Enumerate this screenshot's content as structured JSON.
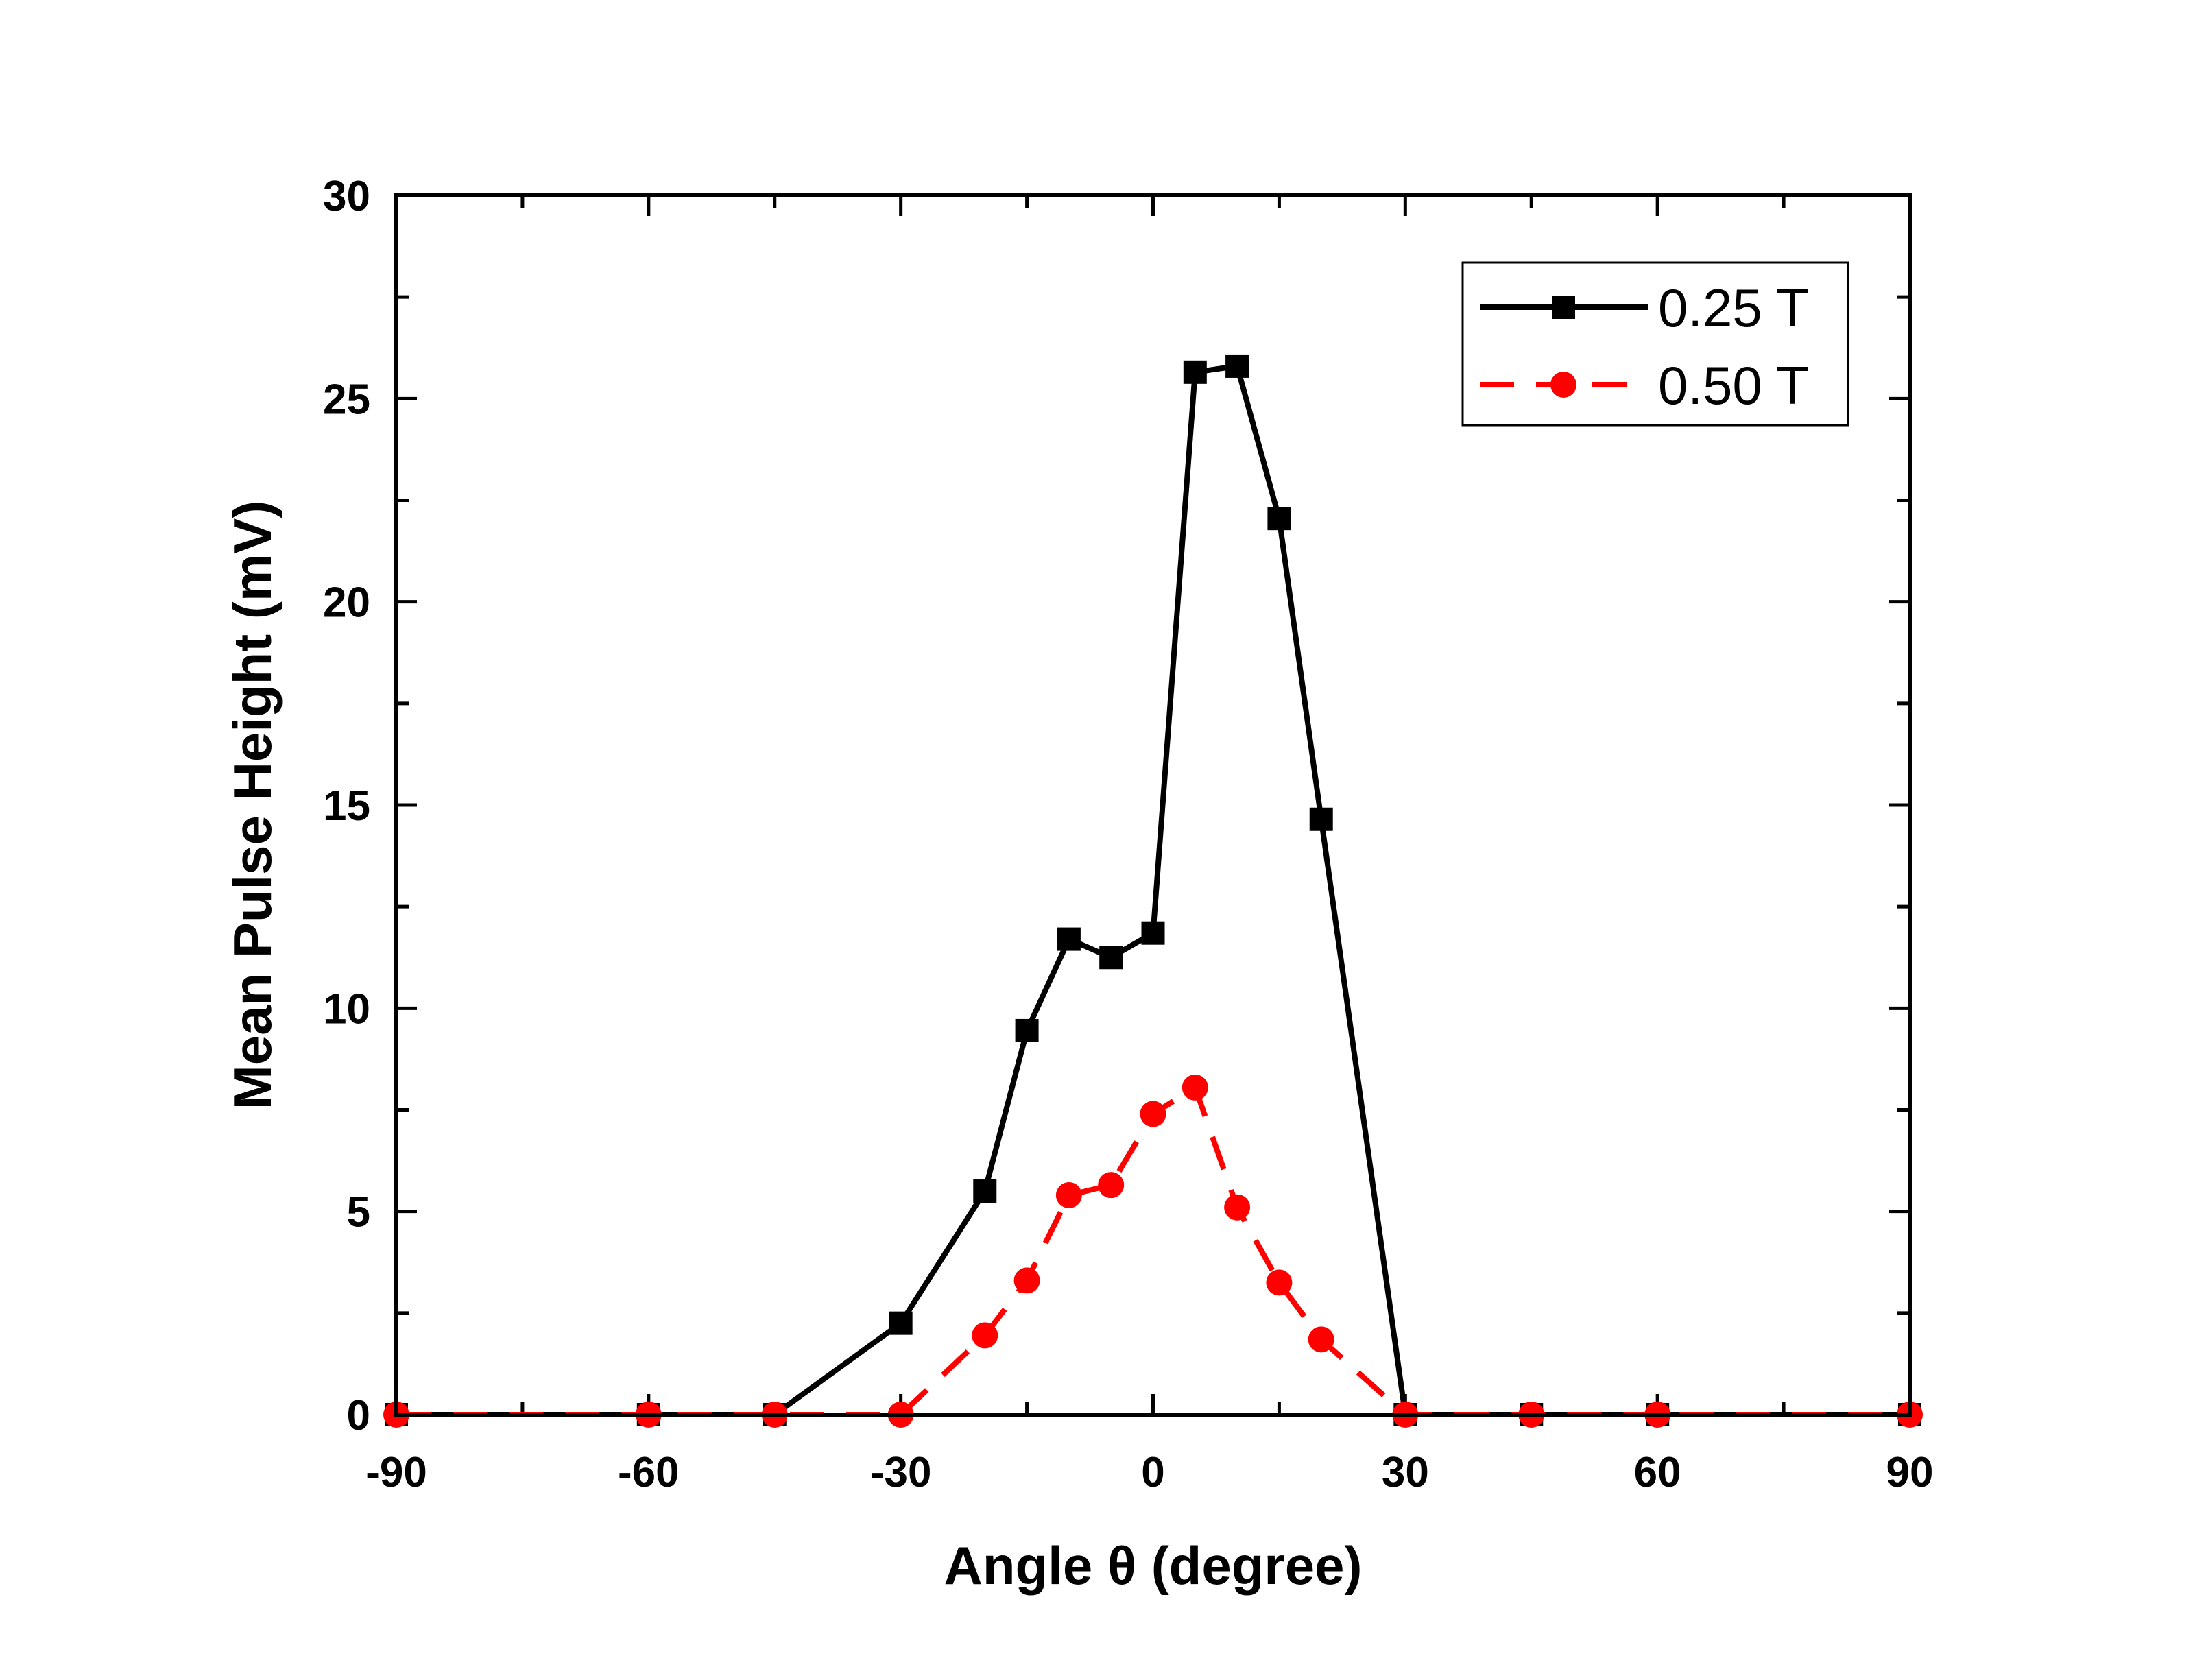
{
  "chart_data": {
    "type": "line",
    "xlabel": "Angle θ (degree)",
    "ylabel": "Mean Pulse Height (mV)",
    "xlim": [
      -90,
      90
    ],
    "ylim": [
      0,
      30
    ],
    "x_ticks": [
      "-90",
      "-60",
      "-30",
      "0",
      "30",
      "60",
      "90"
    ],
    "y_ticks": [
      "0",
      "5",
      "10",
      "15",
      "20",
      "25",
      "30"
    ],
    "legend_position": "top-right",
    "series": [
      {
        "name": "0.25 T",
        "color": "#000000",
        "marker": "square",
        "line_style": "solid",
        "x": [
          -90,
          -60,
          -45,
          -30,
          -20,
          -15,
          -10,
          -5,
          0,
          5,
          10,
          15,
          20,
          30,
          45,
          60,
          90
        ],
        "y": [
          0,
          0,
          0,
          2.25,
          5.5,
          9.45,
          11.7,
          11.25,
          11.85,
          25.65,
          25.8,
          22.05,
          14.65,
          0,
          0,
          0,
          0
        ]
      },
      {
        "name": "0.50 T",
        "color": "#ff0000",
        "marker": "circle",
        "line_style": "dashed",
        "x": [
          -90,
          -60,
          -45,
          -30,
          -20,
          -15,
          -10,
          -5,
          0,
          5,
          10,
          15,
          20,
          30,
          45,
          60,
          90
        ],
        "y": [
          0,
          0,
          0,
          0,
          1.95,
          3.3,
          5.4,
          5.65,
          7.4,
          8.05,
          5.1,
          3.25,
          1.85,
          0,
          0,
          0,
          0
        ]
      }
    ]
  }
}
